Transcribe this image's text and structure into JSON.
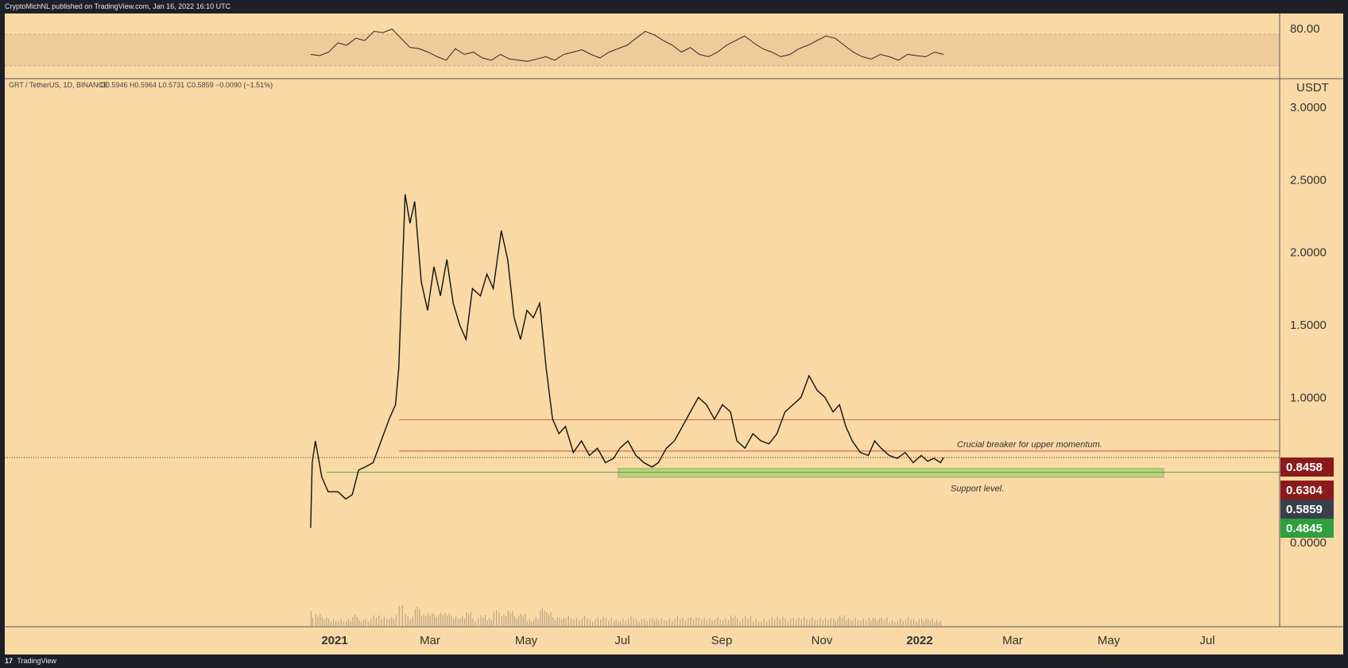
{
  "header": {
    "publisher": "CryptoMichNL published on TradingView.com, Jan 16, 2022 16:10 UTC"
  },
  "footer": {
    "brand_logo": "17",
    "brand": "TradingView"
  },
  "legend": {
    "symbol": "GRT / TetherUS, 1D, BINANCE",
    "ohlc": "O0.5946  H0.5964  L0.5731  C0.5859  −0.0090 (−1.51%)"
  },
  "chart_data": {
    "type": "line",
    "price_axis": {
      "currency": "USDT",
      "ticks": [
        "3.0000",
        "2.5000",
        "2.0000",
        "1.5000",
        "1.0000",
        "0.0000"
      ],
      "tick_values": [
        3,
        2.5,
        2,
        1.5,
        1,
        0
      ],
      "ylim": [
        -0.25,
        3.1
      ]
    },
    "oscillator_axis": {
      "ticks": [
        "80.00"
      ]
    },
    "time_axis": {
      "ticks": [
        "2021",
        "Mar",
        "May",
        "Jul",
        "Sep",
        "Nov",
        "2022",
        "Mar",
        "May",
        "Jul"
      ]
    },
    "levels": [
      {
        "label": "0.8458",
        "value": 0.8458,
        "color": "#8b1a1a"
      },
      {
        "label": "0.6304",
        "value": 0.6304,
        "color": "#8b1a1a"
      },
      {
        "label": "0.5859",
        "value": 0.5859,
        "color": "#3a3f4e"
      },
      {
        "label": "0.4845",
        "value": 0.4845,
        "color": "#2e9e3e"
      }
    ],
    "support_zone": {
      "low": 0.45,
      "high": 0.51,
      "color": "#9ccc65"
    },
    "annotations": [
      {
        "text": "Crucial breaker for upper momentum."
      },
      {
        "text": "Support level."
      }
    ],
    "price_series": {
      "name": "",
      "x": [
        "2020-12-17",
        "2020-12-18",
        "2020-12-20",
        "2020-12-24",
        "2020-12-28",
        "2021-01-03",
        "2021-01-08",
        "2021-01-12",
        "2021-01-16",
        "2021-01-20",
        "2021-01-25",
        "2021-01-30",
        "2021-02-04",
        "2021-02-08",
        "2021-02-10",
        "2021-02-12",
        "2021-02-14",
        "2021-02-17",
        "2021-02-20",
        "2021-02-24",
        "2021-02-28",
        "2021-03-04",
        "2021-03-08",
        "2021-03-12",
        "2021-03-16",
        "2021-03-20",
        "2021-03-24",
        "2021-03-28",
        "2021-04-02",
        "2021-04-06",
        "2021-04-10",
        "2021-04-15",
        "2021-04-19",
        "2021-04-23",
        "2021-04-27",
        "2021-05-01",
        "2021-05-05",
        "2021-05-09",
        "2021-05-13",
        "2021-05-17",
        "2021-05-21",
        "2021-05-25",
        "2021-05-30",
        "2021-06-04",
        "2021-06-09",
        "2021-06-14",
        "2021-06-19",
        "2021-06-24",
        "2021-06-28",
        "2021-07-03",
        "2021-07-08",
        "2021-07-13",
        "2021-07-18",
        "2021-07-22",
        "2021-07-27",
        "2021-08-01",
        "2021-08-06",
        "2021-08-11",
        "2021-08-16",
        "2021-08-21",
        "2021-08-26",
        "2021-08-31",
        "2021-09-05",
        "2021-09-09",
        "2021-09-14",
        "2021-09-19",
        "2021-09-24",
        "2021-09-29",
        "2021-10-04",
        "2021-10-09",
        "2021-10-14",
        "2021-10-19",
        "2021-10-24",
        "2021-10-29",
        "2021-11-03",
        "2021-11-08",
        "2021-11-12",
        "2021-11-16",
        "2021-11-20",
        "2021-11-25",
        "2021-11-30",
        "2021-12-04",
        "2021-12-08",
        "2021-12-13",
        "2021-12-18",
        "2021-12-23",
        "2021-12-28",
        "2022-01-02",
        "2022-01-06",
        "2022-01-10",
        "2022-01-14",
        "2022-01-16"
      ],
      "values": [
        0.1,
        0.55,
        0.7,
        0.45,
        0.35,
        0.35,
        0.3,
        0.33,
        0.5,
        0.52,
        0.55,
        0.7,
        0.85,
        0.95,
        1.2,
        1.8,
        2.4,
        2.2,
        2.35,
        1.8,
        1.6,
        1.9,
        1.7,
        1.95,
        1.65,
        1.5,
        1.4,
        1.75,
        1.7,
        1.85,
        1.75,
        2.15,
        1.95,
        1.55,
        1.4,
        1.6,
        1.55,
        1.65,
        1.2,
        0.85,
        0.75,
        0.8,
        0.62,
        0.7,
        0.6,
        0.65,
        0.55,
        0.58,
        0.65,
        0.7,
        0.6,
        0.55,
        0.52,
        0.55,
        0.65,
        0.7,
        0.8,
        0.9,
        1.0,
        0.95,
        0.85,
        0.95,
        0.9,
        0.7,
        0.65,
        0.75,
        0.7,
        0.68,
        0.75,
        0.9,
        0.95,
        1.0,
        1.15,
        1.05,
        1.0,
        0.9,
        0.95,
        0.8,
        0.7,
        0.62,
        0.6,
        0.7,
        0.65,
        0.6,
        0.58,
        0.62,
        0.55,
        0.6,
        0.56,
        0.58,
        0.55,
        0.5859
      ]
    },
    "oscillator_series": {
      "name": "",
      "values": [
        50,
        49,
        52,
        60,
        58,
        64,
        62,
        70,
        69,
        72,
        64,
        56,
        55,
        52,
        48,
        45,
        55,
        50,
        52,
        47,
        45,
        50,
        46,
        45,
        44,
        46,
        48,
        45,
        50,
        52,
        54,
        50,
        47,
        52,
        55,
        58,
        64,
        70,
        67,
        62,
        58,
        52,
        56,
        50,
        48,
        52,
        58,
        62,
        66,
        60,
        55,
        52,
        48,
        50,
        55,
        58,
        62,
        66,
        64,
        58,
        52,
        48,
        46,
        50,
        48,
        45,
        50,
        49,
        48,
        52,
        50
      ]
    }
  }
}
